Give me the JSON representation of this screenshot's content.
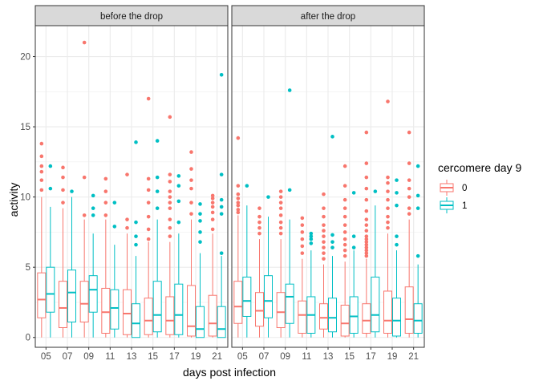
{
  "chart_data": {
    "type": "boxplot",
    "facet_titles": [
      "before the drop",
      "after the drop"
    ],
    "xlabel": "days post infection",
    "ylabel": "activity",
    "categories": [
      "05",
      "07",
      "09",
      "11",
      "13",
      "15",
      "17",
      "19",
      "21"
    ],
    "ylim": [
      -0.7,
      22.2
    ],
    "yticks": [
      0,
      5,
      10,
      15,
      20
    ],
    "grid": true,
    "legend": {
      "title": "cercomere day 9",
      "position": "right",
      "entries": [
        {
          "label": "0",
          "color": "#F8766D"
        },
        {
          "label": "1",
          "color": "#00BFC4"
        }
      ]
    },
    "facets": [
      {
        "title": "before the drop",
        "series": [
          {
            "name": "0",
            "color": "#F8766D",
            "boxes": [
              {
                "min": 0,
                "q1": 1.4,
                "median": 2.7,
                "q3": 4.6,
                "max": 10.0,
                "outliers": [
                  10.5,
                  11.2,
                  11.8,
                  12.2,
                  12.9,
                  13.8
                ]
              },
              {
                "min": 0,
                "q1": 0.7,
                "median": 2.1,
                "q3": 4.0,
                "max": 9.2,
                "outliers": [
                  9.6,
                  10.5,
                  11.4,
                  12.1
                ]
              },
              {
                "min": 0,
                "q1": 1.1,
                "median": 2.4,
                "q3": 4.0,
                "max": 8.4,
                "outliers": [
                  8.7,
                  11.4,
                  21.0
                ]
              },
              {
                "min": 0,
                "q1": 0.3,
                "median": 1.8,
                "q3": 3.5,
                "max": 8.4,
                "outliers": [
                  8.7,
                  9.6,
                  10.4,
                  11.3
                ]
              },
              {
                "min": 0,
                "q1": 0.2,
                "median": 1.7,
                "q3": 3.4,
                "max": 7.4,
                "outliers": [
                  7.8,
                  8.4,
                  11.6
                ]
              },
              {
                "min": 0,
                "q1": 0.2,
                "median": 1.2,
                "q3": 2.8,
                "max": 6.8,
                "outliers": [
                  7.0,
                  7.7,
                  8.6,
                  9.6,
                  10.5,
                  11.3,
                  17.0
                ]
              },
              {
                "min": 0,
                "q1": 0.2,
                "median": 1.2,
                "q3": 2.9,
                "max": 6.8,
                "outliers": [
                  7.2,
                  7.8,
                  8.4,
                  9.2,
                  9.6,
                  10.0,
                  10.4,
                  11.1,
                  11.6,
                  15.7
                ]
              },
              {
                "min": 0,
                "q1": 0.1,
                "median": 0.8,
                "q3": 3.7,
                "max": 8.4,
                "outliers": [
                  8.8,
                  9.6,
                  10.6,
                  11.2,
                  12.0,
                  13.2
                ]
              },
              {
                "min": 0,
                "q1": 0.1,
                "median": 1.0,
                "q3": 3.0,
                "max": 7.4,
                "outliers": [
                  7.7,
                  8.4,
                  8.9,
                  9.3,
                  9.6,
                  9.9,
                  10.1
                ]
              }
            ]
          },
          {
            "name": "1",
            "color": "#00BFC4",
            "boxes": [
              {
                "min": 0,
                "q1": 1.8,
                "median": 3.1,
                "q3": 5.0,
                "max": 9.3,
                "outliers": [
                  10.6,
                  12.2
                ]
              },
              {
                "min": 0,
                "q1": 1.1,
                "median": 3.2,
                "q3": 4.8,
                "max": 10.0,
                "outliers": [
                  10.4
                ]
              },
              {
                "min": 0,
                "q1": 1.8,
                "median": 3.4,
                "q3": 4.4,
                "max": 7.4,
                "outliers": [
                  8.7,
                  9.2,
                  10.1
                ]
              },
              {
                "min": 0,
                "q1": 0.6,
                "median": 2.1,
                "q3": 3.4,
                "max": 6.6,
                "outliers": [
                  7.9,
                  9.6
                ]
              },
              {
                "min": 0,
                "q1": 0.0,
                "median": 1.0,
                "q3": 2.4,
                "max": 5.8,
                "outliers": [
                  6.6,
                  7.2,
                  8.2,
                  13.9
                ]
              },
              {
                "min": 0,
                "q1": 0.4,
                "median": 1.6,
                "q3": 4.0,
                "max": 8.4,
                "outliers": [
                  9.2,
                  10.4,
                  11.4,
                  14.0
                ]
              },
              {
                "min": 0,
                "q1": 0.2,
                "median": 1.6,
                "q3": 3.8,
                "max": 7.4,
                "outliers": [
                  8.2,
                  9.7,
                  10.8,
                  11.5
                ]
              },
              {
                "min": 0,
                "q1": 0.0,
                "median": 0.6,
                "q3": 2.2,
                "max": 6.0,
                "outliers": [
                  6.8,
                  7.5,
                  8.3,
                  8.8,
                  9.5
                ]
              },
              {
                "min": 0,
                "q1": 0.0,
                "median": 0.6,
                "q3": 2.2,
                "max": 5.8,
                "outliers": [
                  6.0,
                  8.8,
                  9.3,
                  9.8,
                  11.6,
                  18.7
                ]
              }
            ]
          }
        ]
      },
      {
        "title": "after the drop",
        "series": [
          {
            "name": "0",
            "color": "#F8766D",
            "boxes": [
              {
                "min": 0,
                "q1": 1.0,
                "median": 2.2,
                "q3": 4.0,
                "max": 8.7,
                "outliers": [
                  8.9,
                  9.1,
                  9.4,
                  9.6,
                  9.9,
                  10.2,
                  10.8,
                  14.2
                ]
              },
              {
                "min": 0,
                "q1": 0.8,
                "median": 1.9,
                "q3": 3.2,
                "max": 7.0,
                "outliers": [
                  7.4,
                  7.8,
                  8.2,
                  8.6,
                  9.2
                ]
              },
              {
                "min": 0,
                "q1": 0.7,
                "median": 1.8,
                "q3": 3.2,
                "max": 7.0,
                "outliers": [
                  7.4,
                  7.8,
                  8.2,
                  8.7,
                  9.2,
                  9.6,
                  10.0,
                  10.4
                ]
              },
              {
                "min": 0,
                "q1": 0.3,
                "median": 1.6,
                "q3": 2.6,
                "max": 5.6,
                "outliers": [
                  6.0,
                  6.5,
                  7.0,
                  7.5,
                  8.0,
                  8.5
                ]
              },
              {
                "min": 0,
                "q1": 0.6,
                "median": 1.4,
                "q3": 2.4,
                "max": 5.2,
                "outliers": [
                  5.6,
                  6.0,
                  6.4,
                  6.8,
                  7.2,
                  7.6,
                  8.0,
                  8.6,
                  9.2,
                  10.2
                ]
              },
              {
                "min": 0,
                "q1": 0.1,
                "median": 1.0,
                "q3": 2.3,
                "max": 5.4,
                "outliers": [
                  5.8,
                  6.2,
                  6.6,
                  7.0,
                  7.5,
                  8.0,
                  8.6,
                  9.2,
                  9.8,
                  10.8,
                  12.2
                ]
              },
              {
                "min": 0,
                "q1": 0.3,
                "median": 1.2,
                "q3": 2.4,
                "max": 5.6,
                "outliers": [
                  5.8,
                  6.0,
                  6.2,
                  6.4,
                  6.6,
                  6.8,
                  7.0,
                  7.2,
                  7.6,
                  8.0,
                  8.4,
                  9.0,
                  9.8,
                  10.6,
                  11.4,
                  12.4,
                  14.6
                ]
              },
              {
                "min": 0,
                "q1": 0.3,
                "median": 1.2,
                "q3": 3.3,
                "max": 7.4,
                "outliers": [
                  7.8,
                  8.2,
                  8.6,
                  9.2,
                  9.8,
                  10.4,
                  11.0,
                  11.4,
                  16.8
                ]
              },
              {
                "min": 0,
                "q1": 0.3,
                "median": 1.3,
                "q3": 3.6,
                "max": 8.4,
                "outliers": [
                  8.8,
                  9.2,
                  10.0,
                  10.6,
                  11.2,
                  12.4,
                  14.6
                ]
              }
            ]
          },
          {
            "name": "1",
            "color": "#00BFC4",
            "boxes": [
              {
                "min": 0,
                "q1": 1.5,
                "median": 2.6,
                "q3": 4.3,
                "max": 9.4,
                "outliers": [
                  10.8
                ]
              },
              {
                "min": 0,
                "q1": 1.4,
                "median": 2.6,
                "q3": 4.4,
                "max": 8.6,
                "outliers": [
                  10.0
                ]
              },
              {
                "min": 0,
                "q1": 1.0,
                "median": 2.9,
                "q3": 3.8,
                "max": 8.4,
                "outliers": [
                  10.5,
                  17.6
                ]
              },
              {
                "min": 0,
                "q1": 0.3,
                "median": 1.6,
                "q3": 2.9,
                "max": 6.2,
                "outliers": [
                  6.7,
                  7.0,
                  7.2,
                  7.4
                ]
              },
              {
                "min": 0,
                "q1": 0.4,
                "median": 1.4,
                "q3": 2.8,
                "max": 5.8,
                "outliers": [
                  6.4,
                  6.8,
                  7.3,
                  14.3
                ]
              },
              {
                "min": 0,
                "q1": 0.3,
                "median": 1.5,
                "q3": 2.9,
                "max": 6.2,
                "outliers": [
                  6.4,
                  7.2,
                  10.3
                ]
              },
              {
                "min": 0,
                "q1": 0.4,
                "median": 1.6,
                "q3": 4.3,
                "max": 9.4,
                "outliers": [
                  10.4
                ]
              },
              {
                "min": 0,
                "q1": 0.1,
                "median": 1.2,
                "q3": 2.8,
                "max": 6.2,
                "outliers": [
                  6.6,
                  7.2,
                  9.4,
                  10.3,
                  11.2
                ]
              },
              {
                "min": 0,
                "q1": 0.3,
                "median": 1.2,
                "q3": 2.4,
                "max": 5.2,
                "outliers": [
                  5.8,
                  9.2,
                  10.1,
                  12.2
                ]
              }
            ]
          }
        ]
      }
    ]
  }
}
